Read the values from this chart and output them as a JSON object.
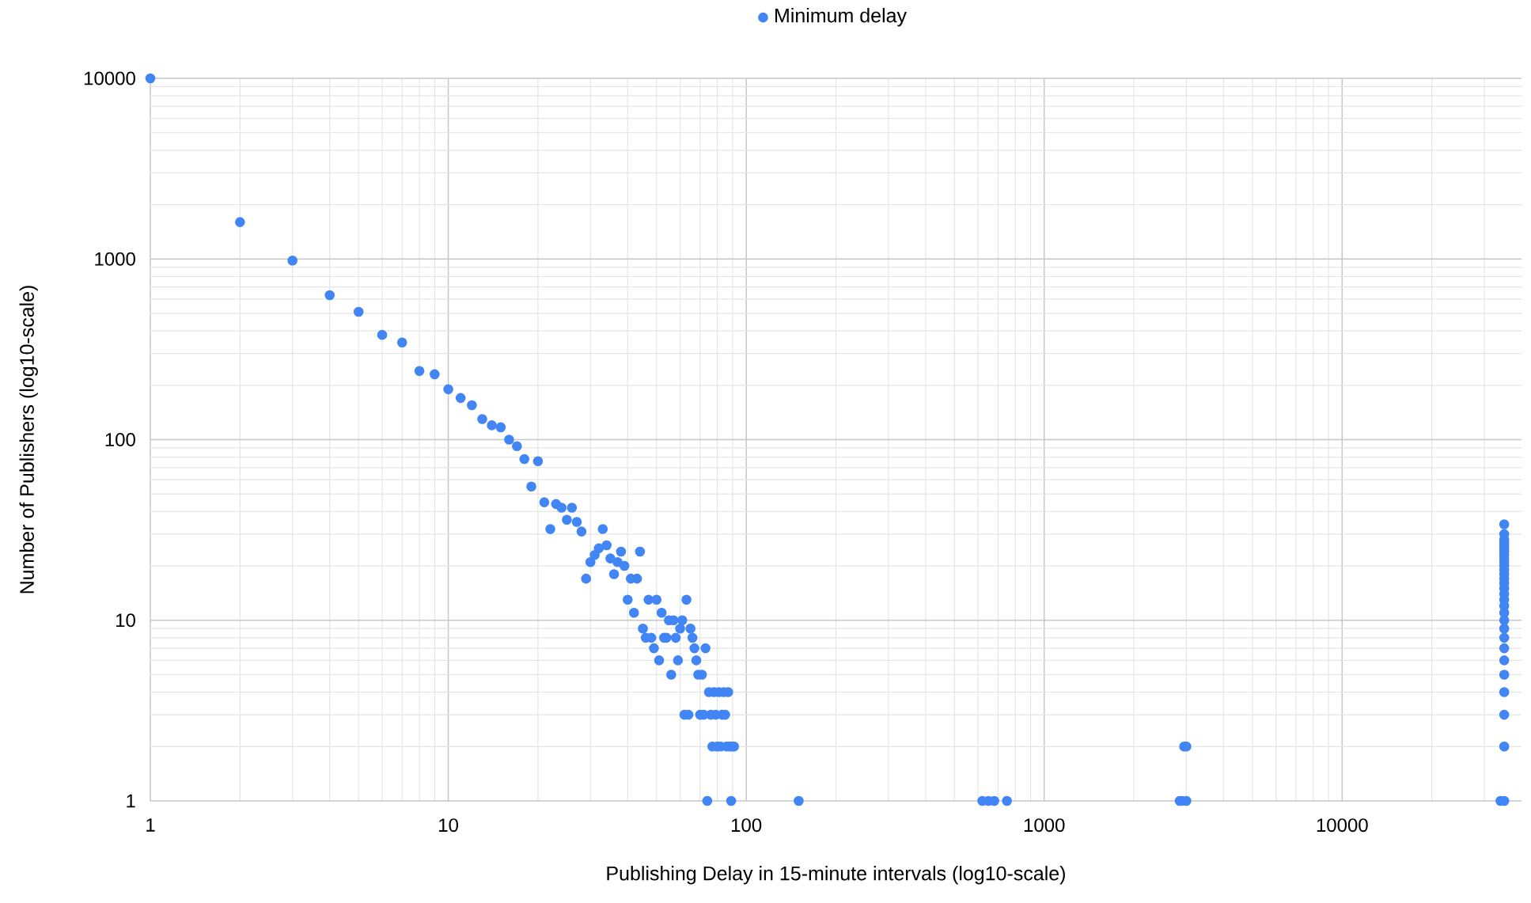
{
  "chart_data": {
    "type": "scatter",
    "xlabel": "Publishing Delay in 15-minute intervals (log10-scale)",
    "ylabel": "Number of Publishers (log10-scale)",
    "log": "xy",
    "grid": true,
    "legend": "top",
    "marker": "circle",
    "xlim": [
      1,
      40000
    ],
    "ylim": [
      1,
      10000
    ],
    "xticks": [
      1,
      10,
      100,
      1000,
      10000
    ],
    "yticks": [
      1,
      10,
      100,
      1000,
      10000
    ],
    "series": [
      {
        "name": "Minimum delay",
        "color": "#4285f4",
        "x": [
          1,
          2,
          3,
          4,
          5,
          6,
          7,
          8,
          9,
          10,
          11,
          12,
          13,
          14,
          15,
          16,
          17,
          18,
          19,
          20,
          21,
          22,
          23,
          24,
          25,
          26,
          27,
          28,
          29,
          30,
          31,
          32,
          33,
          34,
          35,
          36,
          37,
          38,
          39,
          40,
          41,
          42,
          43,
          44,
          45,
          46,
          47,
          48,
          49,
          50,
          51,
          52,
          53,
          54,
          55,
          56,
          57,
          58,
          59,
          60,
          61,
          62,
          63,
          64,
          65,
          66,
          67,
          68,
          69,
          70,
          71,
          72,
          73,
          74,
          75,
          76,
          77,
          78,
          79,
          80,
          81,
          82,
          83,
          84,
          85,
          86,
          87,
          88,
          89,
          90,
          91,
          150,
          620,
          650,
          680,
          750,
          2850,
          2900,
          3000,
          2950,
          3000,
          34000,
          35000,
          35000,
          35000,
          35000,
          35000,
          35000,
          35000,
          35000,
          35000,
          35000,
          35000,
          35000,
          35000,
          35000,
          35000,
          35000,
          35000,
          35000,
          35000,
          35000,
          35000,
          35000,
          35000,
          35000,
          35000,
          35000,
          35000,
          35000,
          35000,
          35000
        ],
        "values": [
          10000,
          1600,
          980,
          630,
          510,
          380,
          345,
          240,
          230,
          190,
          170,
          155,
          130,
          120,
          117,
          100,
          92,
          78,
          55,
          76,
          45,
          32,
          44,
          42,
          36,
          42,
          35,
          31,
          17,
          21,
          23,
          25,
          32,
          26,
          22,
          18,
          21,
          24,
          20,
          13,
          17,
          11,
          17,
          24,
          9,
          8,
          13,
          8,
          7,
          13,
          6,
          11,
          8,
          8,
          10,
          5,
          10,
          8,
          6,
          9,
          10,
          3,
          13,
          3,
          9,
          8,
          7,
          6,
          5,
          3,
          5,
          3,
          7,
          1,
          4,
          3,
          2,
          4,
          3,
          2,
          4,
          2,
          3,
          4,
          3,
          2,
          4,
          2,
          1,
          2,
          2,
          1,
          1,
          1,
          1,
          1,
          1,
          1,
          1,
          2,
          2,
          1,
          1,
          2,
          3,
          4,
          5,
          6,
          7,
          8,
          9,
          10,
          11,
          12,
          13,
          14,
          15,
          16,
          17,
          18,
          19,
          20,
          21,
          22,
          23,
          24,
          25,
          26,
          27,
          28,
          30,
          34
        ]
      }
    ]
  }
}
